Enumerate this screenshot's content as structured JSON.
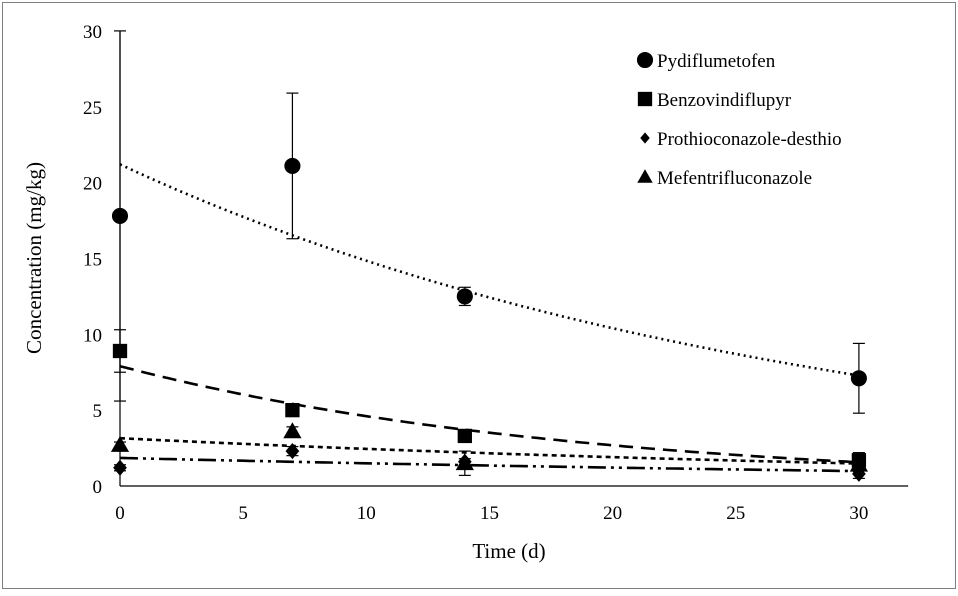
{
  "chart_data": {
    "type": "scatter",
    "title": "",
    "xlabel": "Time (d)",
    "ylabel": "Concentration (mg/kg)",
    "xlim": [
      0,
      32
    ],
    "ylim": [
      0,
      30
    ],
    "x_ticks": [
      0,
      5,
      10,
      15,
      20,
      25,
      30
    ],
    "y_ticks": [
      0,
      5,
      10,
      15,
      20,
      25,
      30
    ],
    "x_tick_labels": [
      "0",
      "5",
      "10",
      "15",
      "20",
      "25",
      "30"
    ],
    "y_tick_labels": [
      "0",
      "5",
      "10",
      "15",
      "20",
      "25",
      "30"
    ],
    "grid": false,
    "legend_position": "top-right",
    "x": [
      0,
      7,
      14,
      30
    ],
    "series": [
      {
        "name": "Pydiflumetofen",
        "marker": "circle",
        "values": [
          17.8,
          21.1,
          12.5,
          7.1
        ],
        "error": [
          12.2,
          4.8,
          0.6,
          2.3
        ],
        "trendline": {
          "type": "exponential",
          "a": 21.2,
          "k": 0.0356,
          "style": "dotted"
        }
      },
      {
        "name": "Benzovindiflupyr",
        "marker": "square",
        "values": [
          8.9,
          5.0,
          3.3,
          1.7
        ],
        "error": [
          1.4,
          0.3,
          0.2,
          0.5
        ],
        "trendline": {
          "type": "exponential",
          "a": 7.9,
          "k": 0.054,
          "style": "dashed"
        }
      },
      {
        "name": "Prothioconazole-desthio",
        "marker": "diamond",
        "values": [
          1.2,
          2.3,
          1.6,
          0.8
        ],
        "error": [
          0.2,
          0.3,
          0.2,
          0.3
        ],
        "trendline": {
          "type": "exponential",
          "a": 1.85,
          "k": 0.0211,
          "style": "dash-dot-dot"
        }
      },
      {
        "name": "Mefentrifluconazole",
        "marker": "triangle",
        "values": [
          2.7,
          3.6,
          1.5,
          1.4
        ],
        "error": [
          0.2,
          0.3,
          0.8,
          0.3
        ],
        "trendline": {
          "type": "exponential",
          "a": 3.15,
          "k": 0.0252,
          "style": "short-dashed"
        }
      }
    ]
  },
  "colors": {
    "ink": "#000000",
    "background": "#ffffff",
    "frame": "#808080"
  }
}
